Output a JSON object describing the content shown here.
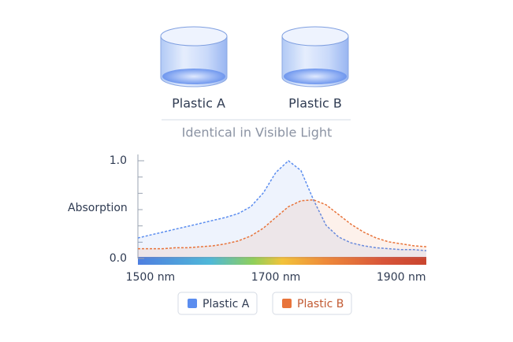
{
  "samples": [
    "Plastic A",
    "Plastic B"
  ],
  "caption": "Identical in Visible Light",
  "chart_data": {
    "type": "line",
    "y_label": "Absorption",
    "x": [
      1480,
      1500,
      1520,
      1540,
      1560,
      1580,
      1600,
      1620,
      1640,
      1660,
      1680,
      1700,
      1720,
      1740,
      1760,
      1780,
      1800,
      1820,
      1840,
      1860,
      1880,
      1900,
      1920,
      1940
    ],
    "series": [
      {
        "name": "Plastic A",
        "color": "#5b8def",
        "values": [
          0.21,
          0.24,
          0.27,
          0.3,
          0.33,
          0.36,
          0.39,
          0.42,
          0.46,
          0.53,
          0.67,
          0.88,
          1.0,
          0.9,
          0.6,
          0.34,
          0.22,
          0.16,
          0.13,
          0.11,
          0.1,
          0.09,
          0.09,
          0.08
        ]
      },
      {
        "name": "Plastic B",
        "color": "#e8743b",
        "values": [
          0.1,
          0.1,
          0.1,
          0.11,
          0.11,
          0.12,
          0.13,
          0.15,
          0.18,
          0.23,
          0.31,
          0.42,
          0.53,
          0.59,
          0.6,
          0.55,
          0.45,
          0.35,
          0.27,
          0.21,
          0.17,
          0.15,
          0.13,
          0.12
        ]
      }
    ],
    "xlim": [
      1480,
      1940
    ],
    "ylim": [
      0,
      1
    ],
    "xticks": [
      {
        "value": 1500,
        "label": "1500 nm"
      },
      {
        "value": 1700,
        "label": "1700 nm"
      },
      {
        "value": 1900,
        "label": "1900 nm"
      }
    ],
    "yticks": [
      {
        "value": 0,
        "label": "0.0"
      },
      {
        "value": 1,
        "label": "1.0"
      }
    ]
  }
}
